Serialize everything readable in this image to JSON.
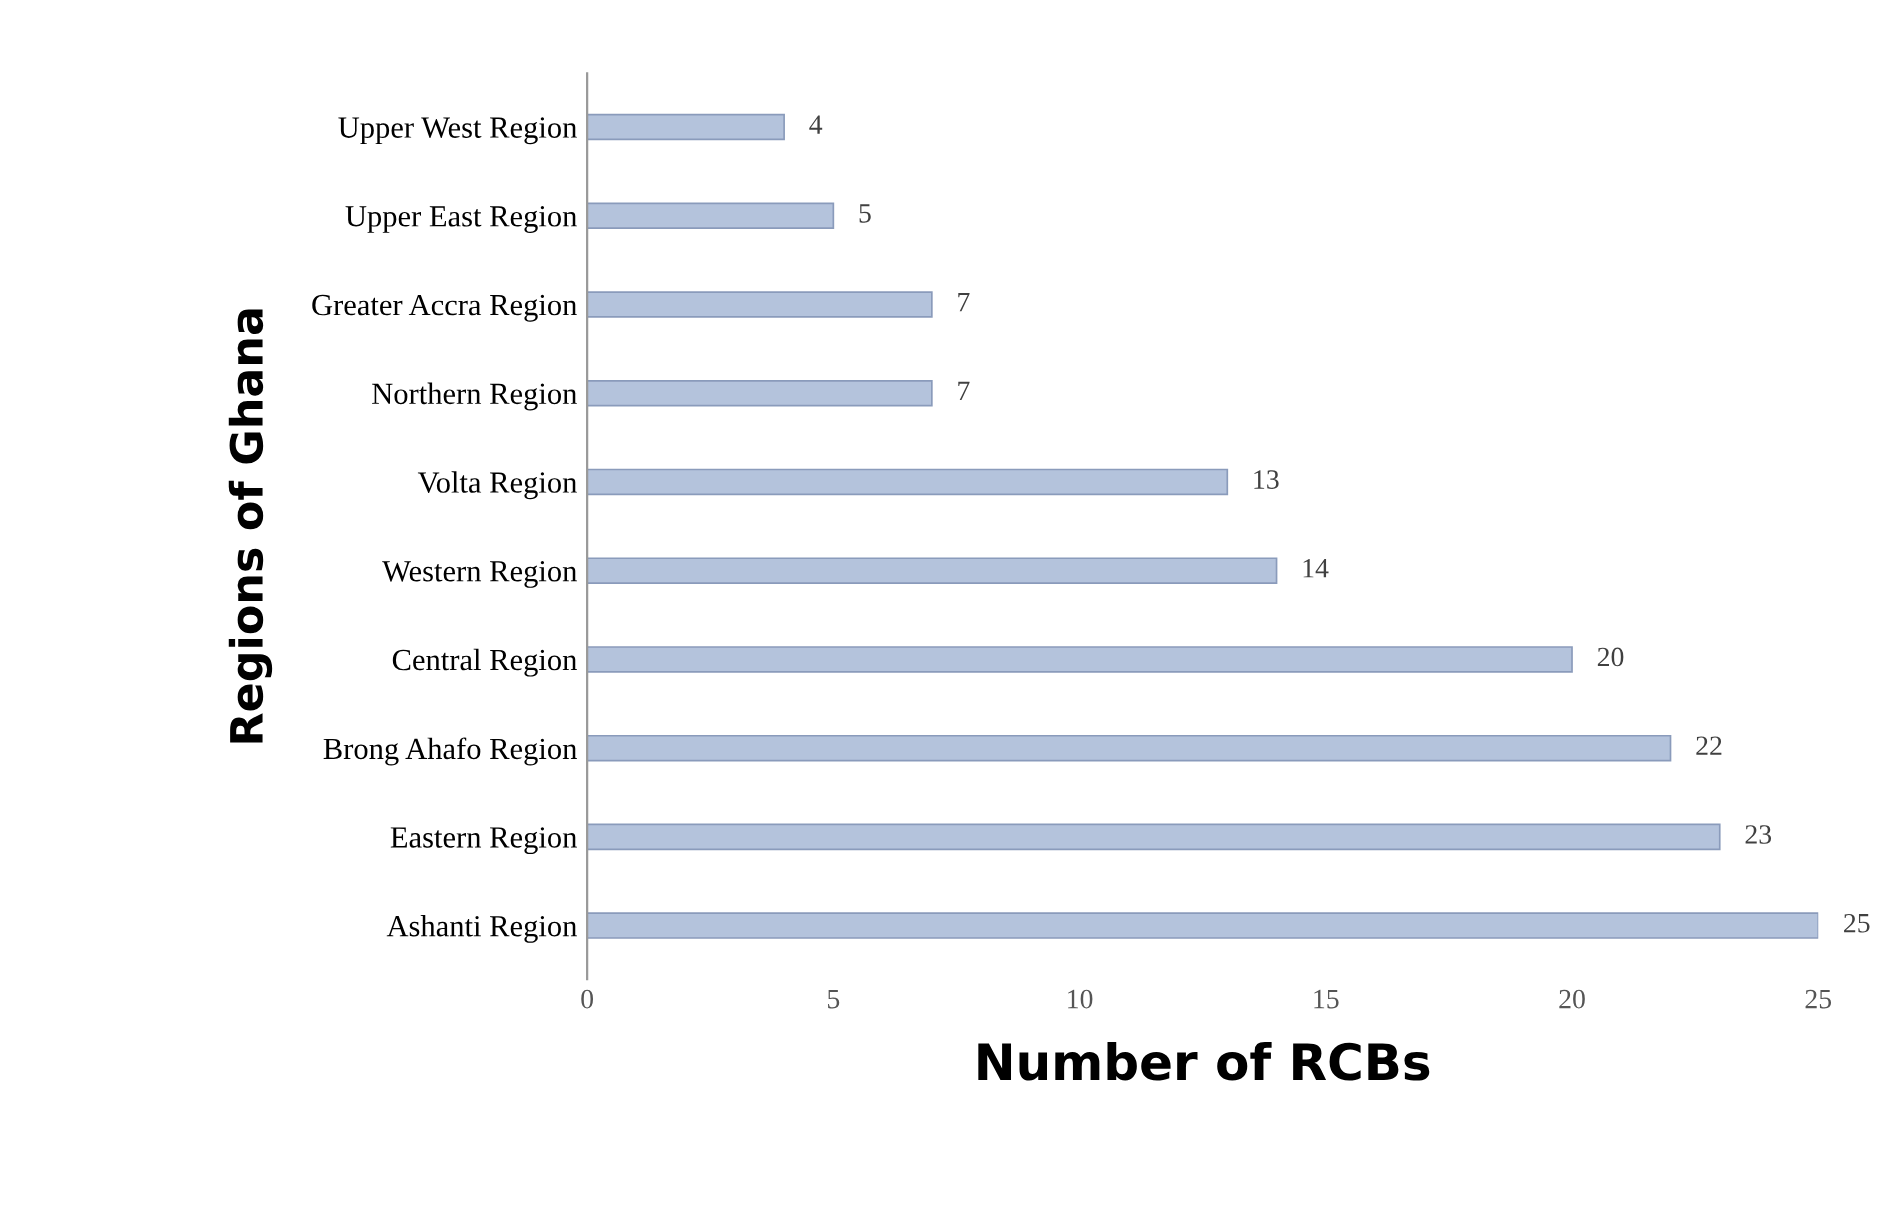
{
  "chart_data": {
    "type": "bar",
    "orientation": "horizontal",
    "xlabel": "Number of RCBs",
    "ylabel": "Regions of Ghana",
    "categories": [
      "Upper West Region",
      "Upper East Region",
      "Greater Accra Region",
      "Northern Region",
      "Volta Region",
      "Western Region",
      "Central Region",
      "Brong Ahafo Region",
      "Eastern Region",
      "Ashanti Region"
    ],
    "values": [
      4,
      5,
      7,
      7,
      13,
      14,
      20,
      22,
      23,
      25
    ],
    "color": "#b4c3dc",
    "xlim": [
      0,
      25
    ],
    "xticks": [
      0,
      5,
      10,
      15,
      20,
      25
    ],
    "grid": false,
    "legend": false,
    "data_labels": true
  }
}
